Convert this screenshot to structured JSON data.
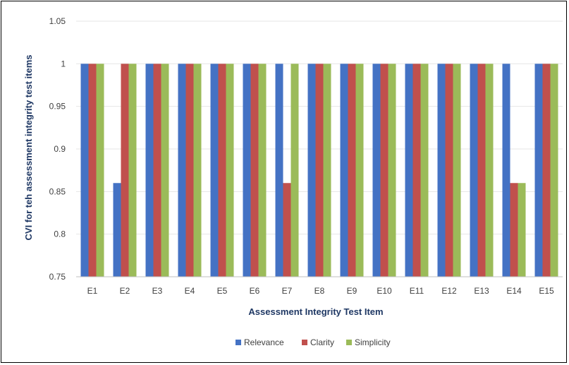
{
  "chart_data": {
    "type": "bar",
    "xlabel": "Assessment Integrity Test Item",
    "ylabel": "CVI for teh assessment integrity test items",
    "categories": [
      "E1",
      "E2",
      "E3",
      "E4",
      "E5",
      "E6",
      "E7",
      "E8",
      "E9",
      "E10",
      "E11",
      "E12",
      "E13",
      "E14",
      "E15"
    ],
    "series": [
      {
        "name": "Relevance",
        "color": "#4472c4",
        "values": [
          1,
          0.86,
          1,
          1,
          1,
          1,
          1,
          1,
          1,
          1,
          1,
          1,
          1,
          1,
          1
        ]
      },
      {
        "name": "Clarity",
        "color": "#c0504d",
        "values": [
          1,
          1,
          1,
          1,
          1,
          1,
          0.86,
          1,
          1,
          1,
          1,
          1,
          1,
          0.86,
          1
        ]
      },
      {
        "name": "Simplicity",
        "color": "#9bbb59",
        "values": [
          1,
          1,
          1,
          1,
          1,
          1,
          1,
          1,
          1,
          1,
          1,
          1,
          1,
          0.86,
          1
        ]
      }
    ],
    "ylim": [
      0.75,
      1.05
    ],
    "yticks": [
      "0.75",
      "0.8",
      "0.85",
      "0.9",
      "0.95",
      "1",
      "1.05"
    ],
    "grid": true,
    "legend_position": "bottom-center"
  }
}
